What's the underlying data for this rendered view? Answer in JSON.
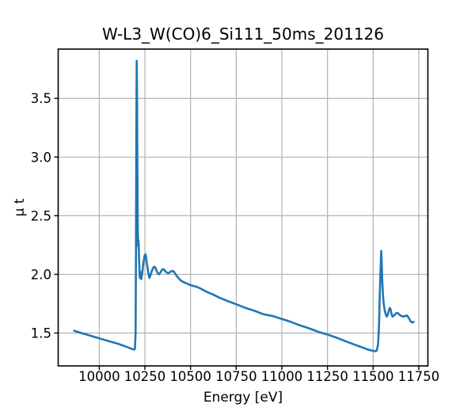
{
  "figure": {
    "background": "#ffffff",
    "text_color": "#000000"
  },
  "chart_data": {
    "type": "line",
    "title": "W-L3_W(CO)6_Si111_50ms_201126",
    "xlabel": "Energy [eV]",
    "ylabel": "μ t",
    "xlim": [
      9775,
      11800
    ],
    "ylim": [
      1.22,
      3.92
    ],
    "xticks": [
      10000,
      10250,
      10500,
      10750,
      11000,
      11250,
      11500,
      11750
    ],
    "xtick_labels": [
      "10000",
      "10250",
      "10500",
      "10750",
      "11000",
      "11250",
      "11500",
      "11750"
    ],
    "yticks": [
      1.5,
      2.0,
      2.5,
      3.0,
      3.5
    ],
    "ytick_labels": [
      "1.5",
      "2.0",
      "2.5",
      "3.0",
      "3.5"
    ],
    "grid": true,
    "legend_position": "none",
    "line_color": "#1f77b4",
    "grid_color": "#b2b2b2",
    "spine_color": "#000000",
    "series": [
      {
        "points": [
          [
            9862,
            1.52
          ],
          [
            9900,
            1.501
          ],
          [
            9950,
            1.478
          ],
          [
            10000,
            1.455
          ],
          [
            10050,
            1.432
          ],
          [
            10100,
            1.41
          ],
          [
            10140,
            1.388
          ],
          [
            10170,
            1.37
          ],
          [
            10188,
            1.36
          ],
          [
            10195,
            1.362
          ],
          [
            10199,
            1.5
          ],
          [
            10201,
            2.1
          ],
          [
            10203,
            3.2
          ],
          [
            10205,
            3.82
          ],
          [
            10207,
            3.55
          ],
          [
            10209,
            2.85
          ],
          [
            10211,
            2.42
          ],
          [
            10213,
            2.24
          ],
          [
            10215,
            2.29
          ],
          [
            10218,
            2.12
          ],
          [
            10222,
            1.97
          ],
          [
            10226,
            2.02
          ],
          [
            10230,
            1.96
          ],
          [
            10236,
            2.02
          ],
          [
            10242,
            2.1
          ],
          [
            10248,
            2.16
          ],
          [
            10254,
            2.17
          ],
          [
            10260,
            2.1
          ],
          [
            10268,
            2.02
          ],
          [
            10274,
            1.97
          ],
          [
            10280,
            1.99
          ],
          [
            10288,
            2.03
          ],
          [
            10296,
            2.06
          ],
          [
            10304,
            2.065
          ],
          [
            10312,
            2.04
          ],
          [
            10320,
            2.01
          ],
          [
            10328,
            2.0
          ],
          [
            10336,
            2.02
          ],
          [
            10344,
            2.04
          ],
          [
            10352,
            2.045
          ],
          [
            10360,
            2.03
          ],
          [
            10370,
            2.015
          ],
          [
            10378,
            2.01
          ],
          [
            10388,
            2.02
          ],
          [
            10398,
            2.03
          ],
          [
            10408,
            2.025
          ],
          [
            10418,
            2.0
          ],
          [
            10430,
            1.975
          ],
          [
            10445,
            1.95
          ],
          [
            10460,
            1.935
          ],
          [
            10475,
            1.925
          ],
          [
            10490,
            1.915
          ],
          [
            10505,
            1.905
          ],
          [
            10520,
            1.9
          ],
          [
            10540,
            1.89
          ],
          [
            10560,
            1.875
          ],
          [
            10590,
            1.85
          ],
          [
            10620,
            1.83
          ],
          [
            10660,
            1.8
          ],
          [
            10700,
            1.775
          ],
          [
            10750,
            1.745
          ],
          [
            10800,
            1.715
          ],
          [
            10850,
            1.69
          ],
          [
            10900,
            1.66
          ],
          [
            10950,
            1.645
          ],
          [
            11000,
            1.62
          ],
          [
            11050,
            1.595
          ],
          [
            11100,
            1.565
          ],
          [
            11150,
            1.54
          ],
          [
            11200,
            1.51
          ],
          [
            11250,
            1.487
          ],
          [
            11300,
            1.46
          ],
          [
            11350,
            1.43
          ],
          [
            11400,
            1.4
          ],
          [
            11440,
            1.378
          ],
          [
            11470,
            1.36
          ],
          [
            11495,
            1.35
          ],
          [
            11510,
            1.345
          ],
          [
            11520,
            1.35
          ],
          [
            11527,
            1.4
          ],
          [
            11532,
            1.55
          ],
          [
            11536,
            1.8
          ],
          [
            11540,
            2.0
          ],
          [
            11544,
            2.2
          ],
          [
            11547,
            2.1
          ],
          [
            11550,
            1.95
          ],
          [
            11554,
            1.82
          ],
          [
            11558,
            1.75
          ],
          [
            11563,
            1.7
          ],
          [
            11569,
            1.66
          ],
          [
            11574,
            1.64
          ],
          [
            11580,
            1.655
          ],
          [
            11586,
            1.69
          ],
          [
            11591,
            1.715
          ],
          [
            11596,
            1.7
          ],
          [
            11601,
            1.66
          ],
          [
            11606,
            1.64
          ],
          [
            11612,
            1.645
          ],
          [
            11620,
            1.66
          ],
          [
            11628,
            1.67
          ],
          [
            11636,
            1.67
          ],
          [
            11645,
            1.655
          ],
          [
            11655,
            1.645
          ],
          [
            11665,
            1.64
          ],
          [
            11675,
            1.645
          ],
          [
            11685,
            1.65
          ],
          [
            11695,
            1.63
          ],
          [
            11705,
            1.6
          ],
          [
            11714,
            1.59
          ],
          [
            11722,
            1.595
          ]
        ]
      }
    ]
  }
}
